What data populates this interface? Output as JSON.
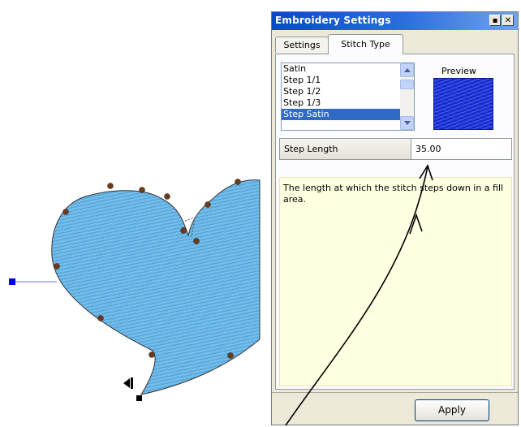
{
  "panel": {
    "title": "Embroidery Settings",
    "pin_glyph": "▪",
    "close_glyph": "✕",
    "tabs": [
      {
        "label": "Settings",
        "active": false
      },
      {
        "label": "Stitch Type",
        "active": true
      }
    ],
    "stitch_types": [
      "Satin",
      "Step 1/1",
      "Step 1/2",
      "Step 1/3",
      "Step Satin"
    ],
    "selected_index": 4,
    "preview_label": "Preview",
    "property": {
      "label": "Step Length",
      "value": "35.00"
    },
    "description": "The length at which the stitch steps down in a fill area.",
    "apply_label": "Apply"
  },
  "colors": {
    "heart_fill": "#6ab8e8",
    "selection_line": "#0000ff",
    "title_bar": "#0a48c8",
    "preview": "#1a2fd8",
    "description_bg": "#ffffe1"
  }
}
